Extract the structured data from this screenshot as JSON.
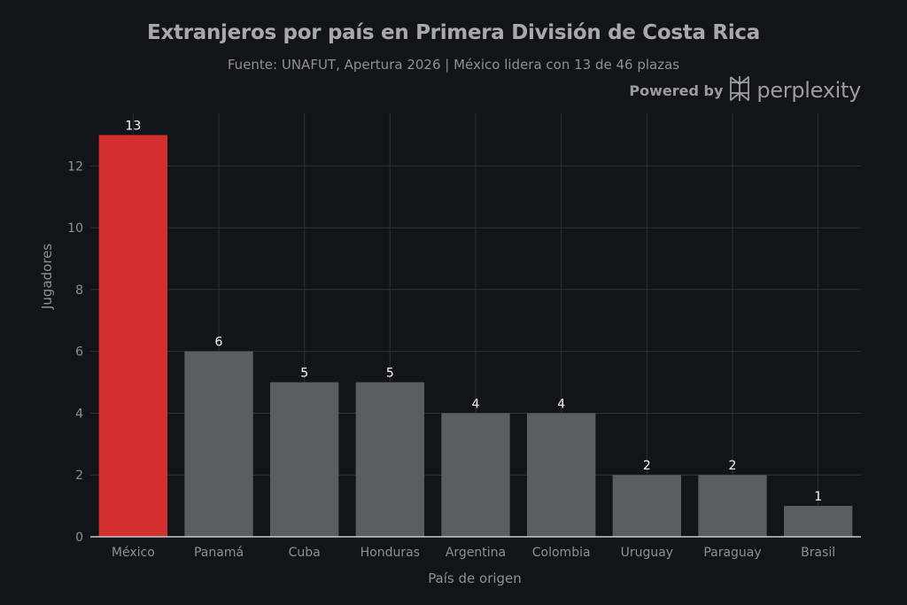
{
  "chart_data": {
    "type": "bar",
    "title": "Extranjeros por país en Primera División de Costa Rica",
    "subtitle": "Fuente: UNAFUT, Apertura 2026 | México lidera con 13 de 46 plazas",
    "xlabel": "País de origen",
    "ylabel": "Jugadores",
    "categories": [
      "México",
      "Panamá",
      "Cuba",
      "Honduras",
      "Argentina",
      "Colombia",
      "Uruguay",
      "Paraguay",
      "Brasil"
    ],
    "values": [
      13,
      6,
      5,
      5,
      4,
      4,
      2,
      2,
      1
    ],
    "ylim": [
      0,
      13.7
    ],
    "yticks": [
      0,
      2,
      4,
      6,
      8,
      10,
      12
    ],
    "grid": true,
    "legend": "none",
    "colors": {
      "highlight": "#d32f2f",
      "default": "#5a5e63",
      "background": "#111418",
      "grid": "#2e3136",
      "axis": "#c8c9cb",
      "tick_text": "#8d9094",
      "data_label": "#ffffff"
    },
    "highlight_index": 0
  },
  "branding": {
    "powered_by": "Powered by",
    "name": "perplexity",
    "icon": "perplexity-logo-icon"
  }
}
